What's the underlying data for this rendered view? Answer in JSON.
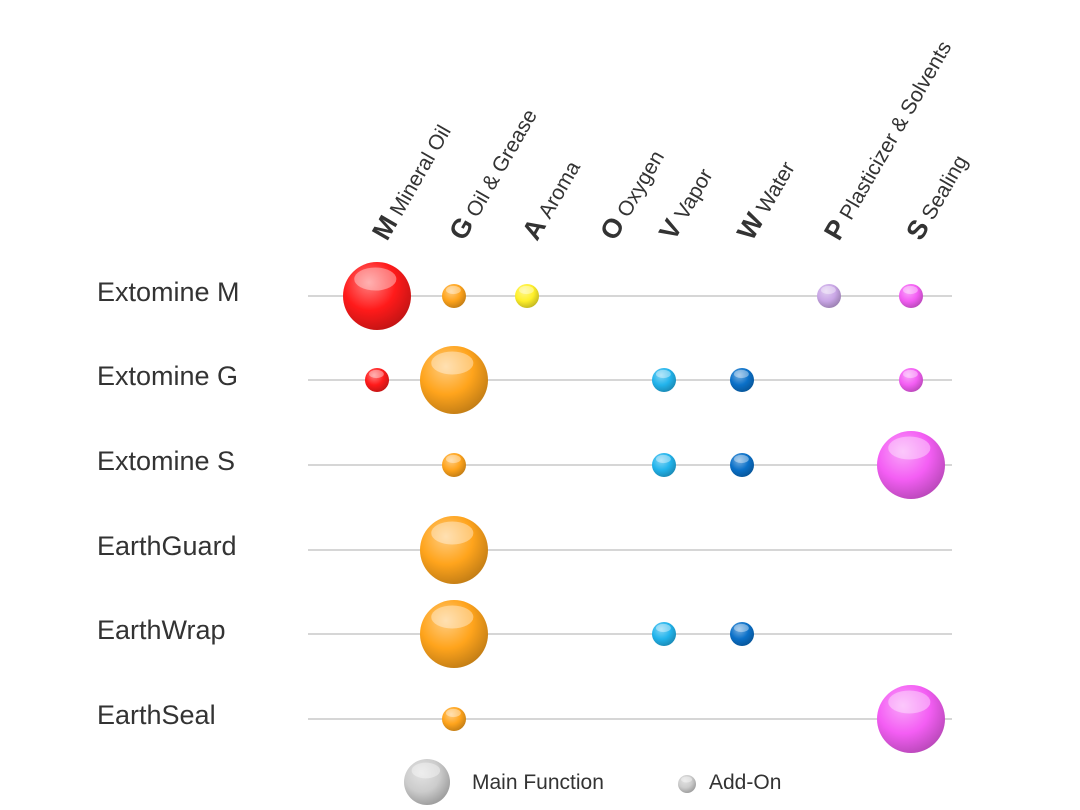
{
  "chart_data": {
    "type": "scatter",
    "columns": [
      {
        "letter": "M",
        "name": "Mineral Oil",
        "color": "#ff1a1a"
      },
      {
        "letter": "G",
        "name": "Oil & Grease",
        "color": "#ffa41c"
      },
      {
        "letter": "A",
        "name": "Aroma",
        "color": "#fff02a"
      },
      {
        "letter": "O",
        "name": "Oxygen",
        "color": "#9ad8f0"
      },
      {
        "letter": "V",
        "name": "Vapor",
        "color": "#22b4ec"
      },
      {
        "letter": "W",
        "name": "Water",
        "color": "#0a70c8"
      },
      {
        "letter": "P",
        "name": "Plasticizer & Solvents",
        "color": "#c9a6e6"
      },
      {
        "letter": "S",
        "name": "Sealing",
        "color": "#f45ef4"
      }
    ],
    "rows": [
      {
        "name": "Extomine M",
        "main": "M",
        "addons": [
          "G",
          "A",
          "P",
          "S"
        ]
      },
      {
        "name": "Extomine G",
        "main": "G",
        "addons": [
          "M",
          "V",
          "W",
          "S"
        ]
      },
      {
        "name": "Extomine S",
        "main": "S",
        "addons": [
          "G",
          "V",
          "W"
        ]
      },
      {
        "name": "EarthGuard",
        "main": "G",
        "addons": []
      },
      {
        "name": "EarthWrap",
        "main": "G",
        "addons": [
          "V",
          "W"
        ]
      },
      {
        "name": "EarthSeal",
        "main": "S",
        "addons": [
          "G"
        ]
      }
    ],
    "legend": {
      "main_label": "Main Function",
      "addon_label": "Add-On",
      "color": "#cccccc"
    }
  }
}
